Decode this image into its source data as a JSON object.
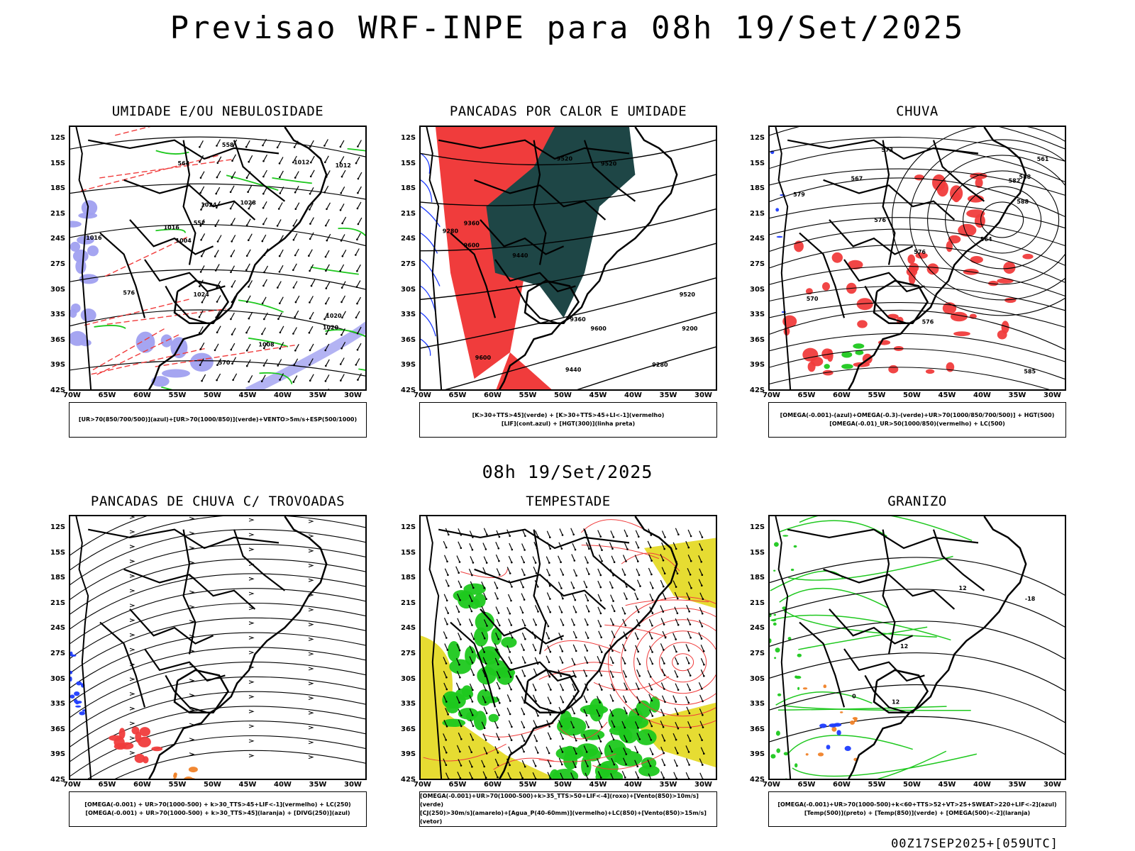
{
  "title": "Previsao WRF-INPE  para 08h 19/Set/2025",
  "subtitle": "08h 19/Set/2025",
  "footer": "00Z17SEP2025+[059UTC]",
  "lat_labels": [
    "12S",
    "15S",
    "18S",
    "21S",
    "24S",
    "27S",
    "30S",
    "33S",
    "36S",
    "39S",
    "42S"
  ],
  "lon_labels": [
    "70W",
    "65W",
    "60W",
    "55W",
    "50W",
    "45W",
    "40W",
    "35W",
    "30W"
  ],
  "colors": {
    "red": "#f03c3c",
    "green": "#1ec81e",
    "blue": "#1e3cff",
    "lavender": "#a0a0f0",
    "dark_teal": "#1e4646",
    "yellow": "#e6dc32",
    "orange": "#f08228"
  },
  "panels": [
    {
      "title": "UMIDADE E/OU NEBULOSIDADE",
      "legend": [
        "[UR>70(850/700/500)](azul)+[UR>70(1000/850)](verde)+VENTO>5m/s+ESP(500/1000)"
      ],
      "contour_labels": [
        "1012",
        "1016",
        "1020",
        "1024",
        "1028",
        "1008",
        "1004",
        "1012",
        "1016",
        "1020",
        "1024",
        "576",
        "570",
        "564",
        "558",
        "552"
      ]
    },
    {
      "title": "PANCADAS POR CALOR E UMIDADE",
      "legend": [
        "[K>30+TTS>45](verde) + [K>30+TTS>45+LI<-1](vermelho)",
        "[LIF](cont.azul) + [HGT(300)](linha preta)"
      ],
      "contour_labels": [
        "9600",
        "9600",
        "9600",
        "9520",
        "9520",
        "9520",
        "9440",
        "9440",
        "9360",
        "9360",
        "9280",
        "9280",
        "9200"
      ]
    },
    {
      "title": "CHUVA",
      "legend": [
        "[OMEGA(-0.001)-(azul)+OMEGA(-0.3)-(verde)+UR>70(1000/850/700/500)] + HGT(500)",
        "[OMEGA(-0.01)_UR>50(1000/850)(vermelho) + LC(500)"
      ],
      "contour_labels": [
        "588",
        "588",
        "582",
        "576",
        "576",
        "576",
        "573",
        "570",
        "567",
        "564",
        "561",
        "585",
        "579"
      ]
    },
    {
      "title": "PANCADAS DE CHUVA C/ TROVOADAS",
      "legend": [
        "[OMEGA(-0.001) + UR>70(1000-500) + k>30_TTS>45+LIF<-1](vermelho) + LC(250)",
        "[OMEGA(-0.001) + UR>70(1000-500) + k>30_TTS>45](laranja) + [DIVG(250)](azul)"
      ],
      "contour_labels": []
    },
    {
      "title": "TEMPESTADE",
      "legend": [
        "[OMEGA(-0.001)+UR>70(1000-500)+k>35_TTS>50+LIF<-4](roxo)+[Vento(850)>10m/s](verde)",
        "[CJ(250)>30m/s](amarelo)+[Agua_P(40-60mm)](vermelho)+LC(850)+[Vento(850)>15m/s](vetor)"
      ],
      "contour_labels": []
    },
    {
      "title": "GRANIZO",
      "legend": [
        "[OMEGA(-0.001)+UR>70(1000-500)+k<60+TTS>52+VT>25+SWEAT>220+LIF<-2](azul)",
        "[Temp(500)](preto) + [Temp(850)](verde) + [OMEGA(500)<-2](laranja)"
      ],
      "contour_labels": [
        "0",
        "12",
        "12",
        "12",
        "-18"
      ]
    }
  ]
}
